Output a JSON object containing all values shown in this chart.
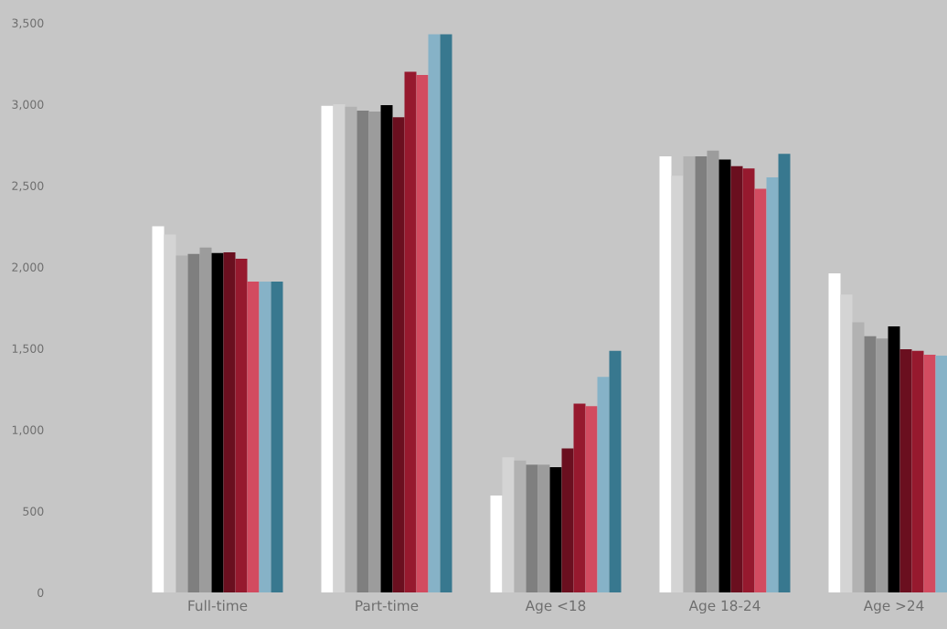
{
  "chart_data": {
    "type": "bar",
    "categories": [
      "Full-time",
      "Part-time",
      "Age <18",
      "Age 18-24",
      "Age >24"
    ],
    "series": [
      {
        "color": "#ffffff",
        "values": [
          2250,
          2990,
          595,
          2680,
          1960
        ]
      },
      {
        "color": "#d4d4d4",
        "values": [
          2200,
          3000,
          830,
          2560,
          1830
        ]
      },
      {
        "color": "#b2b2b2",
        "values": [
          2070,
          2985,
          810,
          2680,
          1660
        ]
      },
      {
        "color": "#7f7f7f",
        "values": [
          2080,
          2960,
          785,
          2680,
          1575
        ]
      },
      {
        "color": "#9c9c9c",
        "values": [
          2120,
          2955,
          785,
          2715,
          1560
        ]
      },
      {
        "color": "#000000",
        "values": [
          2085,
          2995,
          770,
          2660,
          1635
        ]
      },
      {
        "color": "#6a0f1f",
        "values": [
          2090,
          2920,
          885,
          2620,
          1495
        ]
      },
      {
        "color": "#96192e",
        "values": [
          2050,
          3200,
          1160,
          2605,
          1485
        ]
      },
      {
        "color": "#d24b60",
        "values": [
          1910,
          3180,
          1145,
          2480,
          1460
        ]
      },
      {
        "color": "#86b2c7",
        "values": [
          1910,
          3430,
          1325,
          2550,
          1455
        ]
      },
      {
        "color": "#38788f",
        "values": [
          1910,
          3430,
          1485,
          2695,
          null
        ]
      }
    ],
    "ylim": [
      0,
      3500
    ],
    "yticks": [
      {
        "value": 0,
        "label": "0"
      },
      {
        "value": 500,
        "label": "500"
      },
      {
        "value": 1000,
        "label": "1,000"
      },
      {
        "value": 1500,
        "label": "1,500"
      },
      {
        "value": 2000,
        "label": "2,000"
      },
      {
        "value": 2500,
        "label": "2,500"
      },
      {
        "value": 3000,
        "label": "3,000"
      },
      {
        "value": 3500,
        "label": "3,500"
      }
    ],
    "grid": false,
    "legend": false
  }
}
